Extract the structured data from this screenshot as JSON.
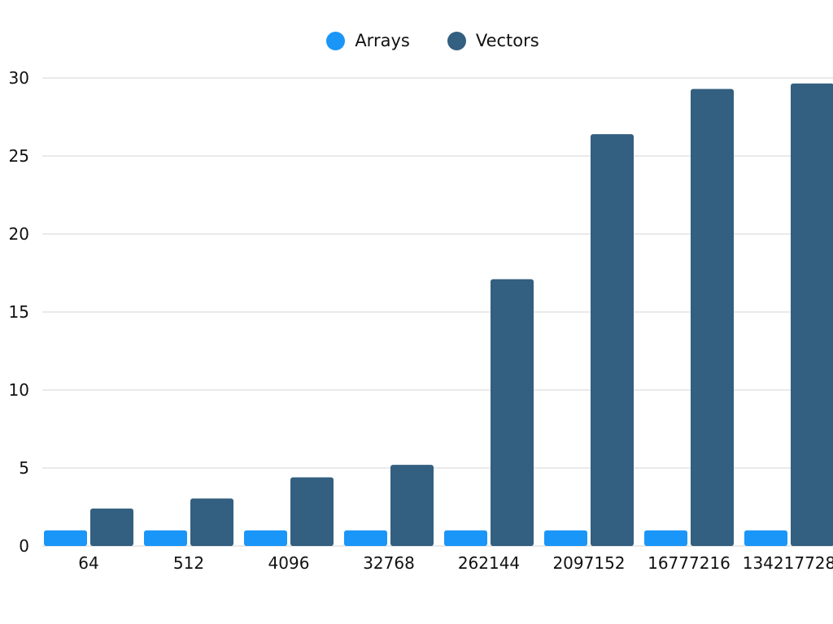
{
  "chart_data": {
    "type": "bar",
    "categories": [
      "64",
      "512",
      "4096",
      "32768",
      "262144",
      "2097152",
      "16777216",
      "134217728"
    ],
    "series": [
      {
        "name": "Arrays",
        "color": "#1a96f8",
        "values": [
          1,
          1,
          1,
          1,
          1,
          1,
          1,
          1
        ]
      },
      {
        "name": "Vectors",
        "color": "#335f80",
        "values": [
          2.4,
          3.05,
          4.4,
          5.2,
          17.1,
          26.4,
          29.3,
          29.65
        ]
      }
    ],
    "title": "",
    "xlabel": "",
    "ylabel": "",
    "ylim": [
      0,
      30
    ],
    "yticks": [
      "0",
      "5",
      "10",
      "15",
      "20",
      "25",
      "30"
    ],
    "grid": true,
    "legend_position": "top-center"
  }
}
